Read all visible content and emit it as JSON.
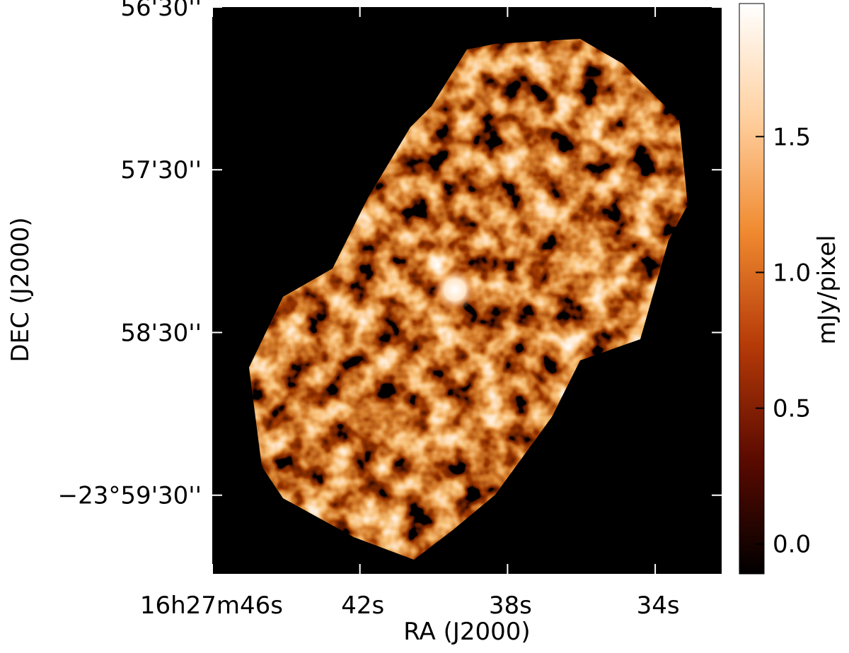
{
  "chart_data": {
    "type": "image",
    "xlabel": "RA (J2000)",
    "ylabel": "DEC (J2000)",
    "colorbar_label": "mJy/pixel",
    "xlim": [
      46,
      32.2
    ],
    "xticks": [
      {
        "value": 46,
        "label": "16h27m46s"
      },
      {
        "value": 42,
        "label": "42s"
      },
      {
        "value": 38,
        "label": "38s"
      },
      {
        "value": 34,
        "label": "34s"
      }
    ],
    "ylim": [
      3599,
      3390
    ],
    "yticks": [
      {
        "value": 3390,
        "label": "56'30''"
      },
      {
        "value": 3450,
        "label": "57'30''"
      },
      {
        "value": 3510,
        "label": "58'30''"
      },
      {
        "value": 3570,
        "label": "−23°59'30''"
      }
    ],
    "clim": [
      -0.11,
      1.99
    ],
    "cticks": [
      {
        "value": 0,
        "label": "0.0"
      },
      {
        "value": 0.5,
        "label": "0.5"
      },
      {
        "value": 1,
        "label": "1.0"
      },
      {
        "value": 1.5,
        "label": "1.5"
      }
    ],
    "colormap": [
      "#000000",
      "#5a0a00",
      "#b53a08",
      "#f08a30",
      "#ffd0a0",
      "#ffffff"
    ]
  }
}
